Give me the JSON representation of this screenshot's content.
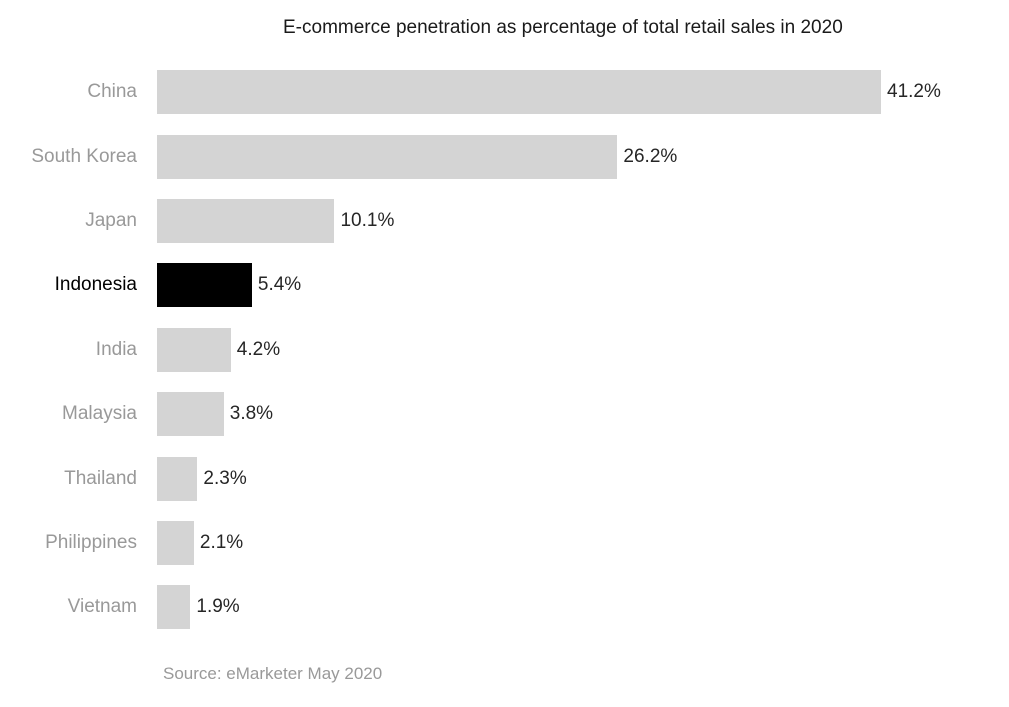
{
  "title": "E-commerce penetration as percentage of total retail sales in 2020",
  "source": "Source: eMarketer May 2020",
  "chart_data": {
    "type": "bar",
    "orientation": "horizontal",
    "title": "E-commerce penetration as percentage of total retail sales in 2020",
    "categories": [
      "China",
      "South Korea",
      "Japan",
      "Indonesia",
      "India",
      "Malaysia",
      "Thailand",
      "Philippines",
      "Vietnam"
    ],
    "values": [
      41.2,
      26.2,
      10.1,
      5.4,
      4.2,
      3.8,
      2.3,
      2.1,
      1.9
    ],
    "value_labels": [
      "41.2%",
      "26.2%",
      "10.1%",
      "5.4%",
      "4.2%",
      "3.8%",
      "2.3%",
      "2.1%",
      "1.9%"
    ],
    "unit": "%",
    "xlim": [
      0,
      41.2
    ],
    "grid": false,
    "legend": "none",
    "highlight_category": "Indonesia",
    "highlight_index": 3,
    "bar_color": "#d4d4d4",
    "highlight_color": "#000000",
    "label_color": "#999999",
    "highlight_label_color": "#000000",
    "value_color": "#262626",
    "title_color": "#1a1a1a",
    "source_color": "#999999",
    "source": "Source: eMarketer May 2020"
  }
}
